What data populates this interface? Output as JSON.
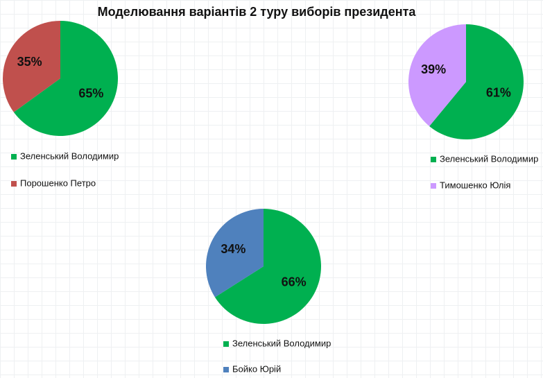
{
  "title": "Моделювання варіантів 2 туру виборів президента",
  "chart_data": [
    {
      "type": "pie",
      "categories": [
        "Зеленський Володимир",
        "Порошенко Петро"
      ],
      "values": [
        65,
        35
      ],
      "value_labels": [
        "65%",
        "35%"
      ],
      "colors": [
        "#00b050",
        "#c0504d"
      ]
    },
    {
      "type": "pie",
      "categories": [
        "Зеленський Володимир",
        "Тимошенко Юлія"
      ],
      "values": [
        61,
        39
      ],
      "value_labels": [
        "61%",
        "39%"
      ],
      "colors": [
        "#00b050",
        "#cc99ff"
      ]
    },
    {
      "type": "pie",
      "categories": [
        "Зеленський Володимир",
        "Бойко Юрій"
      ],
      "values": [
        66,
        34
      ],
      "value_labels": [
        "66%",
        "34%"
      ],
      "colors": [
        "#00b050",
        "#4f81bd"
      ]
    }
  ]
}
